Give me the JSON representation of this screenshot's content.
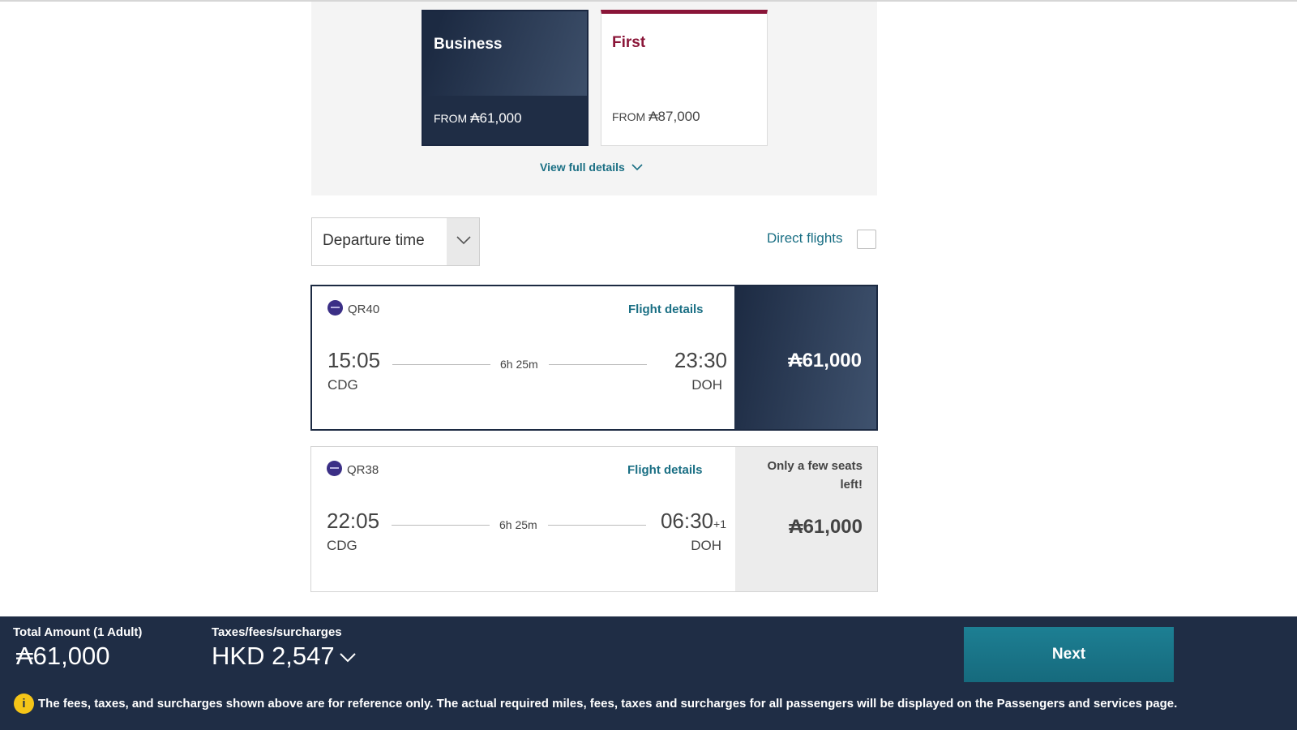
{
  "cabins": [
    {
      "name": "Business",
      "from_label": "FROM",
      "amount": "₳61,000"
    },
    {
      "name": "First",
      "from_label": "FROM",
      "amount": "₳87,000"
    }
  ],
  "view_full_details": "View full details",
  "sort": {
    "label": "Departure time"
  },
  "direct_flights_label": "Direct flights",
  "flights": [
    {
      "flight_no": "QR40",
      "details_label": "Flight details",
      "dep_time": "15:05",
      "dep_code": "CDG",
      "duration": "6h 25m",
      "arr_time": "23:30",
      "arr_plus": "",
      "arr_code": "DOH",
      "price": "₳61,000",
      "note": ""
    },
    {
      "flight_no": "QR38",
      "details_label": "Flight details",
      "dep_time": "22:05",
      "dep_code": "CDG",
      "duration": "6h 25m",
      "arr_time": "06:30",
      "arr_plus": "+1",
      "arr_code": "DOH",
      "price": "₳61,000",
      "note": "Only a few seats left!"
    }
  ],
  "footer": {
    "total_label": "Total Amount (1 Adult)",
    "total_amount": "₳61,000",
    "tax_label": "Taxes/fees/surcharges",
    "tax_amount": "HKD 2,547",
    "next_label": "Next",
    "info_icon": "i",
    "info_text": "The fees, taxes, and surcharges shown above are for reference only. The actual required miles, fees, taxes and surcharges for all passengers will be displayed on the Passengers and services page."
  },
  "colors": {
    "navy": "#1f2d45",
    "teal": "#1a6f84",
    "burgundy": "#8a1538",
    "info_yellow": "#f5c518"
  }
}
